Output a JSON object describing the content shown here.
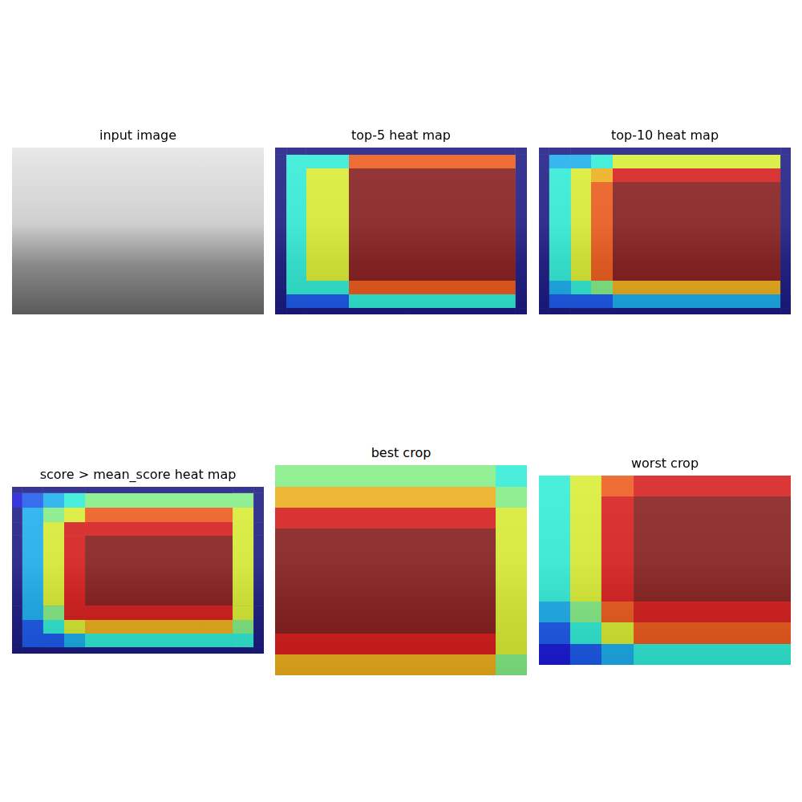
{
  "chart_data": [
    {
      "type": "image",
      "title": "input image"
    },
    {
      "type": "heatmap",
      "title": "top-5 heat map",
      "xlim": [
        0,
        1
      ],
      "ylim": [
        0,
        1
      ],
      "tick_labels": false,
      "x_edges": [
        0,
        0.045,
        0.124,
        0.293,
        0.955,
        1
      ],
      "y_edges": [
        0,
        0.043,
        0.125,
        0.798,
        0.88,
        0.962,
        1
      ],
      "color_range": [
        0,
        5
      ],
      "cells": [
        [
          0,
          0,
          0,
          0,
          0
        ],
        [
          0,
          2,
          2,
          4,
          0
        ],
        [
          0,
          2,
          3,
          5,
          0
        ],
        [
          0,
          2,
          2,
          4,
          0
        ],
        [
          0,
          1,
          1,
          2,
          0
        ],
        [
          0,
          0,
          0,
          0,
          0
        ]
      ]
    },
    {
      "type": "heatmap",
      "title": "top-10 heat map",
      "xlim": [
        0,
        1
      ],
      "ylim": [
        0,
        1
      ],
      "tick_labels": false,
      "x_edges": [
        0,
        0.041,
        0.127,
        0.207,
        0.293,
        0.959,
        1
      ],
      "y_edges": [
        0,
        0.043,
        0.125,
        0.207,
        0.798,
        0.88,
        0.962,
        1
      ],
      "color_range": [
        0,
        10
      ],
      "cells": [
        [
          0,
          0,
          0,
          0,
          0,
          0
        ],
        [
          0,
          3,
          3,
          4,
          6,
          0
        ],
        [
          0,
          4,
          6,
          7,
          9,
          0
        ],
        [
          0,
          4,
          6,
          8,
          10,
          0
        ],
        [
          0,
          3,
          4,
          5,
          7,
          0
        ],
        [
          0,
          2,
          2,
          2,
          3,
          0
        ],
        [
          0,
          0,
          0,
          0,
          0,
          0
        ]
      ]
    },
    {
      "type": "heatmap",
      "title": "score > mean_score heat map",
      "xlim": [
        0,
        1
      ],
      "ylim": [
        0,
        1
      ],
      "tick_labels": false,
      "x_edges": [
        0,
        0.041,
        0.124,
        0.207,
        0.29,
        0.876,
        0.959,
        1
      ],
      "y_edges": [
        0,
        0.038,
        0.125,
        0.212,
        0.293,
        0.712,
        0.798,
        0.88,
        0.962,
        1
      ],
      "color_range": [
        0,
        10
      ],
      "cells": [
        [
          0,
          0,
          0,
          0,
          0,
          0,
          0
        ],
        [
          1,
          2,
          3,
          4,
          5,
          5,
          0
        ],
        [
          0,
          3,
          5,
          6,
          8,
          6,
          0
        ],
        [
          0,
          3,
          6,
          9,
          9,
          6,
          0
        ],
        [
          0,
          3,
          6,
          9,
          10,
          6,
          0
        ],
        [
          0,
          3,
          5,
          9,
          9,
          6,
          0
        ],
        [
          0,
          2,
          4,
          6,
          7,
          5,
          0
        ],
        [
          0,
          2,
          2,
          3,
          4,
          4,
          0
        ],
        [
          0,
          0,
          0,
          0,
          0,
          0,
          0
        ]
      ]
    },
    {
      "type": "heatmap",
      "title": "best crop",
      "xlim": [
        0,
        1
      ],
      "ylim": [
        0,
        1
      ],
      "tick_labels": false,
      "x_edges": [
        0,
        0.876,
        1
      ],
      "y_edges": [
        0,
        0.103,
        0.202,
        0.302,
        0.802,
        0.901,
        1
      ],
      "color_range": [
        0,
        10
      ],
      "cells": [
        [
          5,
          4
        ],
        [
          7,
          5
        ],
        [
          9,
          6
        ],
        [
          10,
          6
        ],
        [
          9,
          6
        ],
        [
          7,
          5
        ]
      ]
    },
    {
      "type": "heatmap",
      "title": "worst crop",
      "xlim": [
        0,
        1
      ],
      "ylim": [
        0,
        1
      ],
      "tick_labels": false,
      "x_edges": [
        0,
        0.124,
        0.248,
        0.376,
        1
      ],
      "y_edges": [
        0,
        0.11,
        0.665,
        0.775,
        0.89,
        1
      ],
      "color_range": [
        0,
        10
      ],
      "cells": [
        [
          4,
          6,
          8,
          9
        ],
        [
          4,
          6,
          9,
          10
        ],
        [
          3,
          5,
          8,
          9
        ],
        [
          2,
          4,
          6,
          8
        ],
        [
          1,
          2,
          3,
          4
        ]
      ]
    }
  ]
}
